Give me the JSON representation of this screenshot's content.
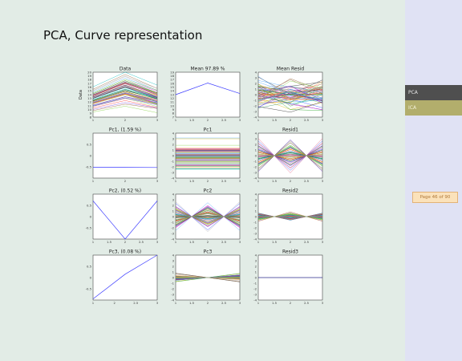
{
  "slide": {
    "title": "PCA, Curve representation"
  },
  "sidebar": {
    "items": [
      {
        "label": "PCA"
      },
      {
        "label": "ICA"
      }
    ],
    "page_counter": "Page 46 of 90"
  },
  "chart_data": [
    {
      "type": "line",
      "title": "Data",
      "ylabel": "Data",
      "x": [
        1,
        2,
        3
      ],
      "xticks": [
        "1",
        "2",
        "3"
      ],
      "ylim": [
        8,
        20
      ],
      "yticks": [
        8,
        9,
        10,
        11,
        12,
        13,
        14,
        15,
        16,
        17,
        18,
        19,
        20
      ],
      "n_series": 60,
      "pattern": "peak"
    },
    {
      "type": "line",
      "title": "Mean 97.89 %",
      "x": [
        1,
        2,
        3
      ],
      "xticks": [
        "1",
        "1.5",
        "2",
        "2.5",
        "3"
      ],
      "ylim": [
        7,
        19
      ],
      "yticks": [
        7,
        8,
        9,
        10,
        11,
        12,
        13,
        14,
        15,
        16,
        17,
        18,
        19
      ],
      "series": [
        {
          "values": [
            13,
            16.1,
            13.3
          ]
        }
      ]
    },
    {
      "type": "line",
      "title": "Mean Resid",
      "x": [
        1,
        2,
        3
      ],
      "xticks": [
        "1",
        "1.5",
        "2",
        "2.5",
        "3"
      ],
      "ylim": [
        -4,
        4
      ],
      "yticks": [
        -4,
        -3,
        -2,
        -1,
        0,
        1,
        2,
        3,
        4
      ],
      "n_series": 60,
      "pattern": "scatter"
    },
    {
      "type": "line",
      "title": "Pc1, (1.59 %)",
      "x": [
        1,
        2,
        3
      ],
      "xticks": [
        "1",
        "2",
        "3"
      ],
      "ylim": [
        -1,
        1
      ],
      "yticks": [
        "-0.5",
        "0",
        "0.5"
      ],
      "series": [
        {
          "values": [
            -0.52,
            -0.52,
            -0.53
          ]
        }
      ]
    },
    {
      "type": "line",
      "title": "Pc1",
      "x": [
        1,
        2,
        3
      ],
      "xticks": [
        "1",
        "1.5",
        "2",
        "2.5",
        "3"
      ],
      "ylim": [
        -4,
        4
      ],
      "yticks": [
        -4,
        -3,
        -2,
        -1,
        0,
        1,
        2,
        3,
        4
      ],
      "n_series": 60,
      "pattern": "flat"
    },
    {
      "type": "line",
      "title": "Resid1",
      "x": [
        1,
        2,
        3
      ],
      "xticks": [
        "1",
        "1.5",
        "2",
        "2.5",
        "3"
      ],
      "ylim": [
        -4,
        4
      ],
      "yticks": [
        -4,
        -3,
        -2,
        -1,
        0,
        1,
        2,
        3,
        4
      ],
      "n_series": 60,
      "pattern": "alternate",
      "amp": 1.2
    },
    {
      "type": "line",
      "title": "Pc2, (0.52 %)",
      "x": [
        1,
        2,
        3
      ],
      "xticks": [
        "1",
        "1.5",
        "2",
        "2.5",
        "3"
      ],
      "ylim": [
        -1,
        1
      ],
      "yticks": [
        "-0.5",
        "0",
        "0.5"
      ],
      "series": [
        {
          "values": [
            0.7,
            -1,
            0.7
          ]
        }
      ]
    },
    {
      "type": "line",
      "title": "Pc2",
      "x": [
        1,
        2,
        3
      ],
      "xticks": [
        "1",
        "1.5",
        "2",
        "2.5",
        "3"
      ],
      "ylim": [
        -4,
        4
      ],
      "yticks": [
        -4,
        -3,
        -2,
        -1,
        0,
        1,
        2,
        3,
        4
      ],
      "n_series": 60,
      "pattern": "alternate",
      "amp": 1.1
    },
    {
      "type": "line",
      "title": "Resid2",
      "x": [
        1,
        2,
        3
      ],
      "xticks": [
        "1",
        "1.5",
        "2",
        "2.5",
        "3"
      ],
      "ylim": [
        -4,
        4
      ],
      "yticks": [
        -4,
        -3,
        -2,
        -1,
        0,
        1,
        2,
        3,
        4
      ],
      "n_series": 60,
      "pattern": "alternate",
      "amp": 0.35
    },
    {
      "type": "line",
      "title": "Pc3, (0.08 %)",
      "x": [
        1,
        2,
        3
      ],
      "xticks": [
        "1",
        "2",
        "2.5",
        "3"
      ],
      "ylim": [
        -1,
        1
      ],
      "yticks": [
        "-0.5",
        "0",
        "0.5"
      ],
      "series": [
        {
          "values": [
            -0.95,
            0.15,
            1.0
          ]
        }
      ]
    },
    {
      "type": "line",
      "title": "Pc3",
      "x": [
        1,
        2,
        3
      ],
      "xticks": [
        "1",
        "1.5",
        "2",
        "2.5",
        "3"
      ],
      "ylim": [
        -4,
        4
      ],
      "yticks": [
        -4,
        -3,
        -2,
        -1,
        0,
        1,
        2,
        3,
        4
      ],
      "n_series": 60,
      "pattern": "v",
      "amp": 0.35
    },
    {
      "type": "line",
      "title": "Resid3",
      "x": [
        1,
        2,
        3
      ],
      "xticks": [
        "1",
        "1.5",
        "2",
        "2.5",
        "3"
      ],
      "ylim": [
        -4,
        4
      ],
      "yticks": [
        -4,
        -3,
        -2,
        -1,
        0,
        1,
        2,
        3,
        4
      ],
      "series": [
        {
          "values": [
            0,
            0,
            0
          ]
        }
      ]
    }
  ]
}
